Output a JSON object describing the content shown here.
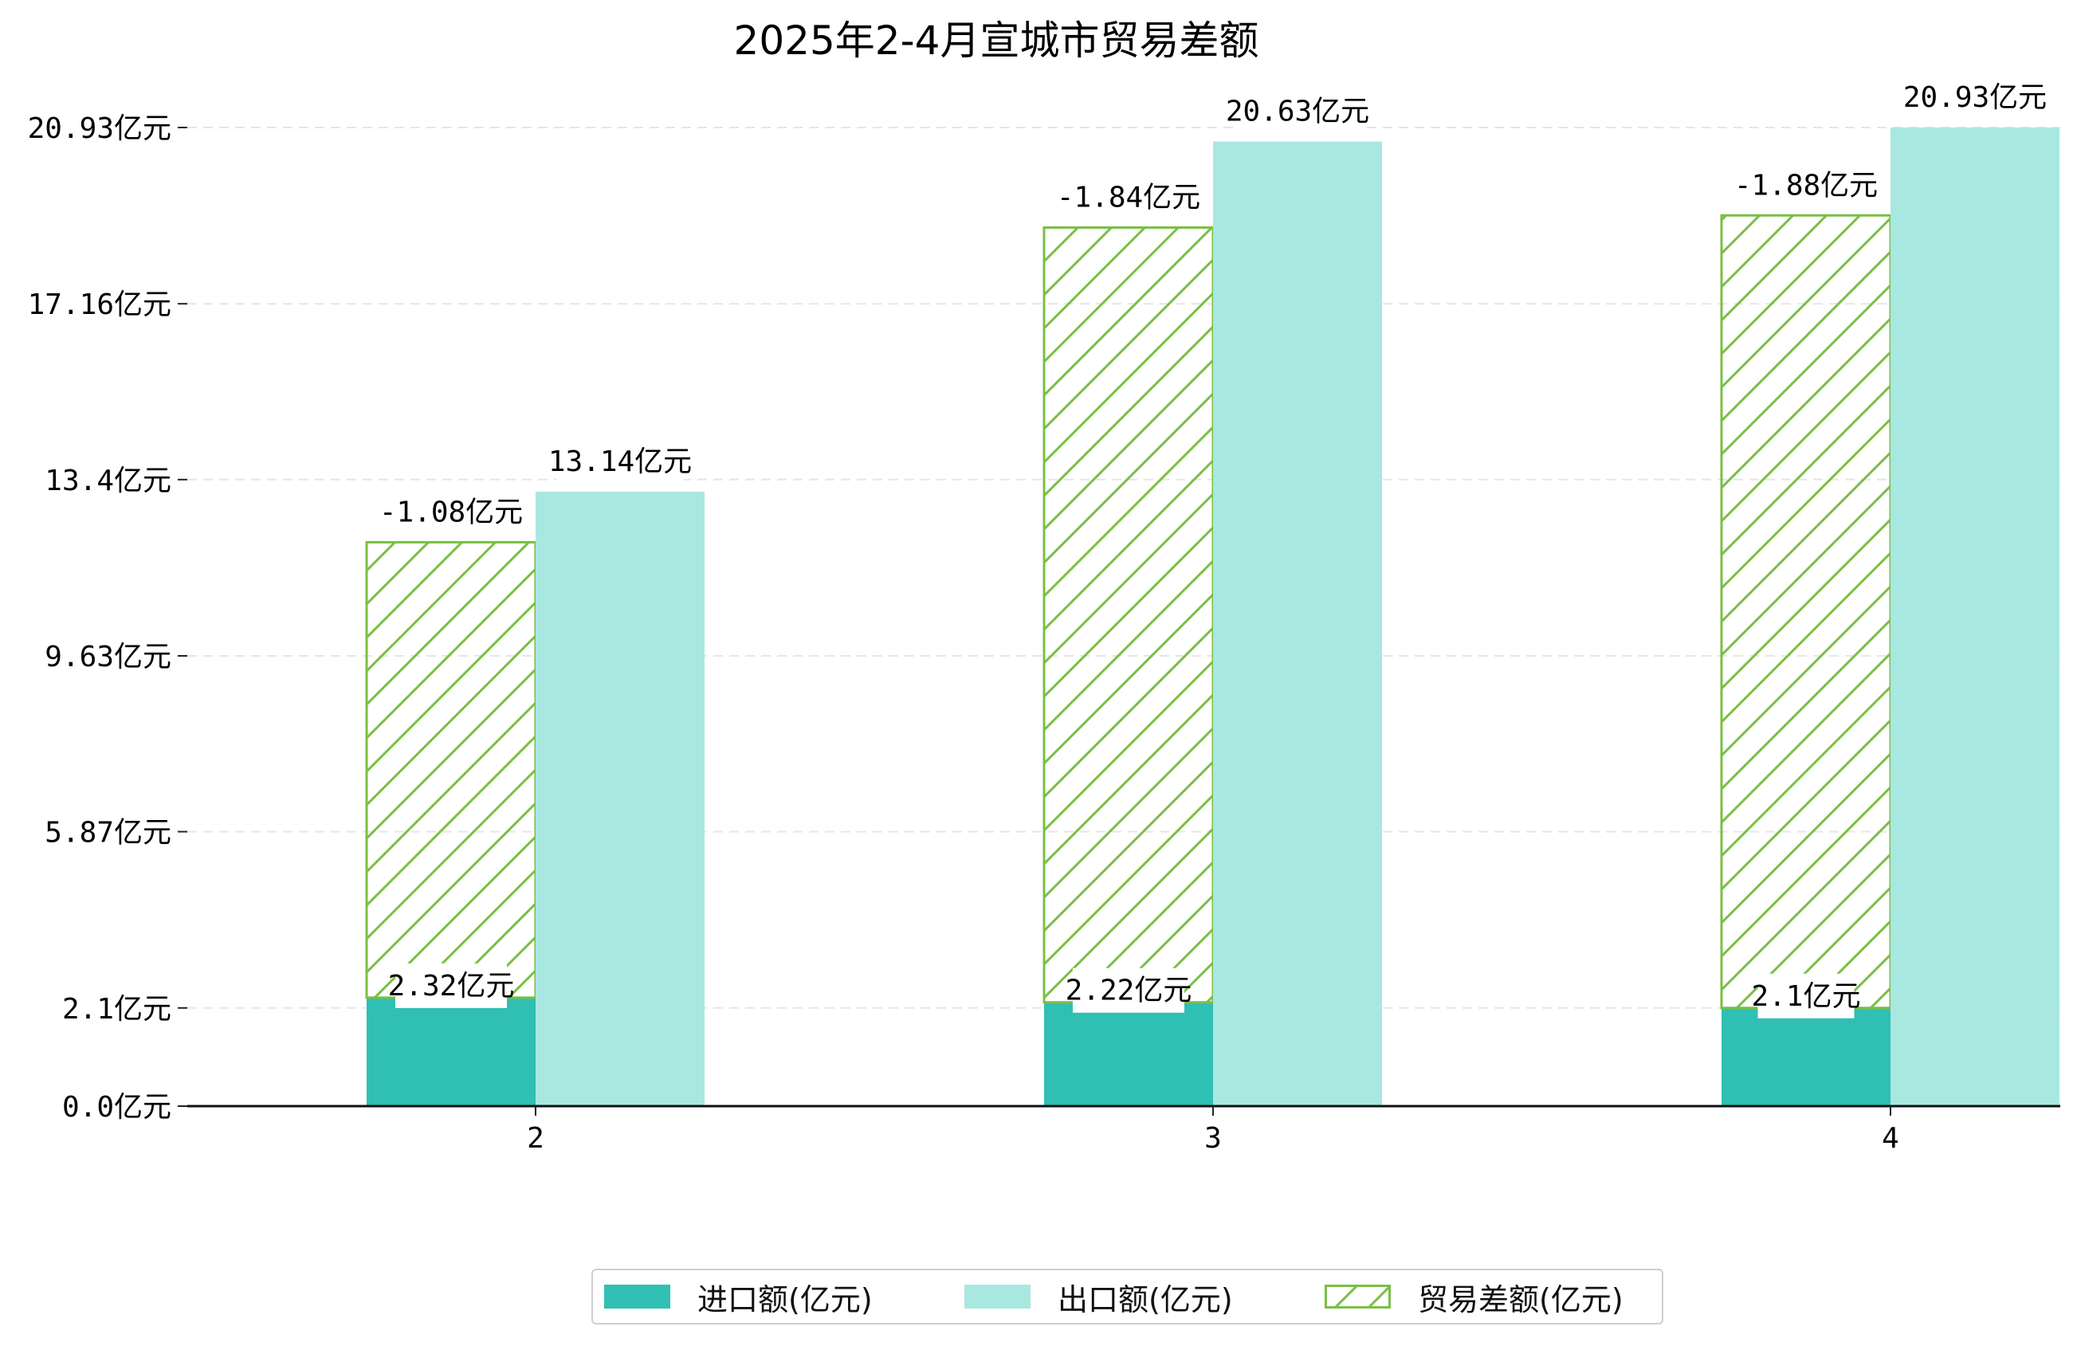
{
  "chart_data": {
    "type": "bar",
    "title": "2025年2-4月宣城市贸易差额",
    "categories": [
      "2",
      "3",
      "4"
    ],
    "series": [
      {
        "name": "进口额(亿元)",
        "values": [
          2.32,
          2.22,
          2.1
        ],
        "color": "#30bfb3"
      },
      {
        "name": "出口额(亿元)",
        "values": [
          13.14,
          20.63,
          20.93
        ],
        "color": "#a9e7e1"
      },
      {
        "name": "贸易差额(亿元)",
        "values": [
          -1.08,
          -1.84,
          -1.88
        ],
        "color": "#7abf45",
        "pattern": "hatch"
      }
    ],
    "data_labels": {
      "import": [
        "2.32亿元",
        "2.22亿元",
        "2.1亿元"
      ],
      "export": [
        "13.14亿元",
        "20.63亿元",
        "20.93亿元"
      ],
      "balance": [
        "-1.08亿元",
        "-1.84亿元",
        "-1.88亿元"
      ]
    },
    "yticks": [
      0.0,
      2.1,
      5.87,
      9.63,
      13.4,
      17.16,
      20.93
    ],
    "ytick_labels": [
      "0.0亿元",
      "2.1亿元",
      "5.87亿元",
      "9.63亿元",
      "13.4亿元",
      "17.16亿元",
      "20.93亿元"
    ],
    "ylim": [
      0,
      22.2
    ],
    "grid": true,
    "legend_position": "bottom-center"
  }
}
